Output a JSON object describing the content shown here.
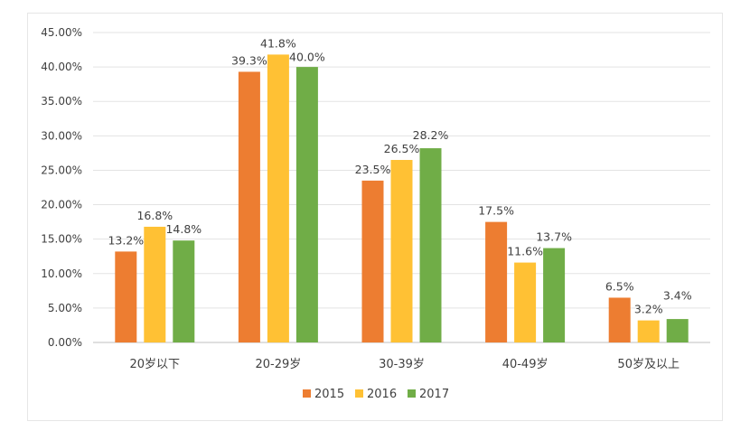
{
  "chart_data": {
    "type": "bar",
    "categories": [
      "20岁以下",
      "20-29岁",
      "30-39岁",
      "40-49岁",
      "50岁及以上"
    ],
    "series": [
      {
        "name": "2015",
        "color": "#ED7D31",
        "values": [
          13.2,
          39.3,
          23.5,
          17.5,
          6.5
        ],
        "labels": [
          "13.2%",
          "39.3%",
          "23.5%",
          "17.5%",
          "6.5%"
        ]
      },
      {
        "name": "2016",
        "color": "#FFC134",
        "values": [
          16.8,
          41.8,
          26.5,
          11.6,
          3.2
        ],
        "labels": [
          "16.8%",
          "41.8%",
          "26.5%",
          "11.6%",
          "3.2%"
        ]
      },
      {
        "name": "2017",
        "color": "#70AD47",
        "values": [
          14.8,
          40.0,
          28.2,
          13.7,
          3.4
        ],
        "labels": [
          "14.8%",
          "40.0%",
          "28.2%",
          "13.7%",
          "3.4%"
        ]
      }
    ],
    "ylim": [
      0,
      45
    ],
    "yticks": [
      "0.00%",
      "5.00%",
      "10.00%",
      "15.00%",
      "20.00%",
      "25.00%",
      "30.00%",
      "35.00%",
      "40.00%",
      "45.00%"
    ],
    "grid": true,
    "legend_position": "bottom"
  }
}
